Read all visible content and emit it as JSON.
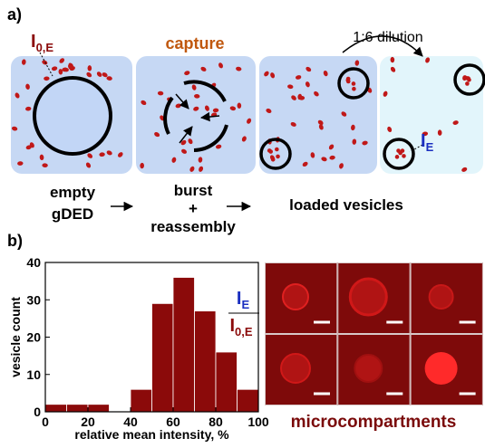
{
  "panel_a": {
    "label": "a)",
    "intensity_label": {
      "main": "I",
      "sub": "0,E"
    },
    "capture": "capture",
    "dilution": "1:6 dilution",
    "diluted_label": {
      "main": "I",
      "sub": "E"
    },
    "step1": [
      "empty",
      "gDED"
    ],
    "step2": [
      "burst",
      "+",
      "reassembly"
    ],
    "step3": "loaded vesicles"
  },
  "panel_b": {
    "label": "b)",
    "ratio": {
      "numerator": {
        "main": "I",
        "sub": "E"
      },
      "denominator": {
        "main": "I",
        "sub": "0,E"
      }
    },
    "micrograph_caption": "microcompartments"
  },
  "chart_data": {
    "type": "histogram",
    "bins": [
      0,
      10,
      20,
      30,
      40,
      50,
      60,
      70,
      80,
      90,
      100
    ],
    "values": [
      2,
      2,
      2,
      0,
      6,
      29,
      36,
      27,
      16,
      6
    ],
    "color": "#8b0a0a",
    "xlim": [
      0,
      100
    ],
    "ylim": [
      0,
      40
    ],
    "xticks": [
      0,
      20,
      40,
      60,
      80,
      100
    ],
    "yticks": [
      0,
      10,
      20,
      30,
      40
    ],
    "x_label": "relative mean intensity, %",
    "y_label": "vesicle count"
  }
}
